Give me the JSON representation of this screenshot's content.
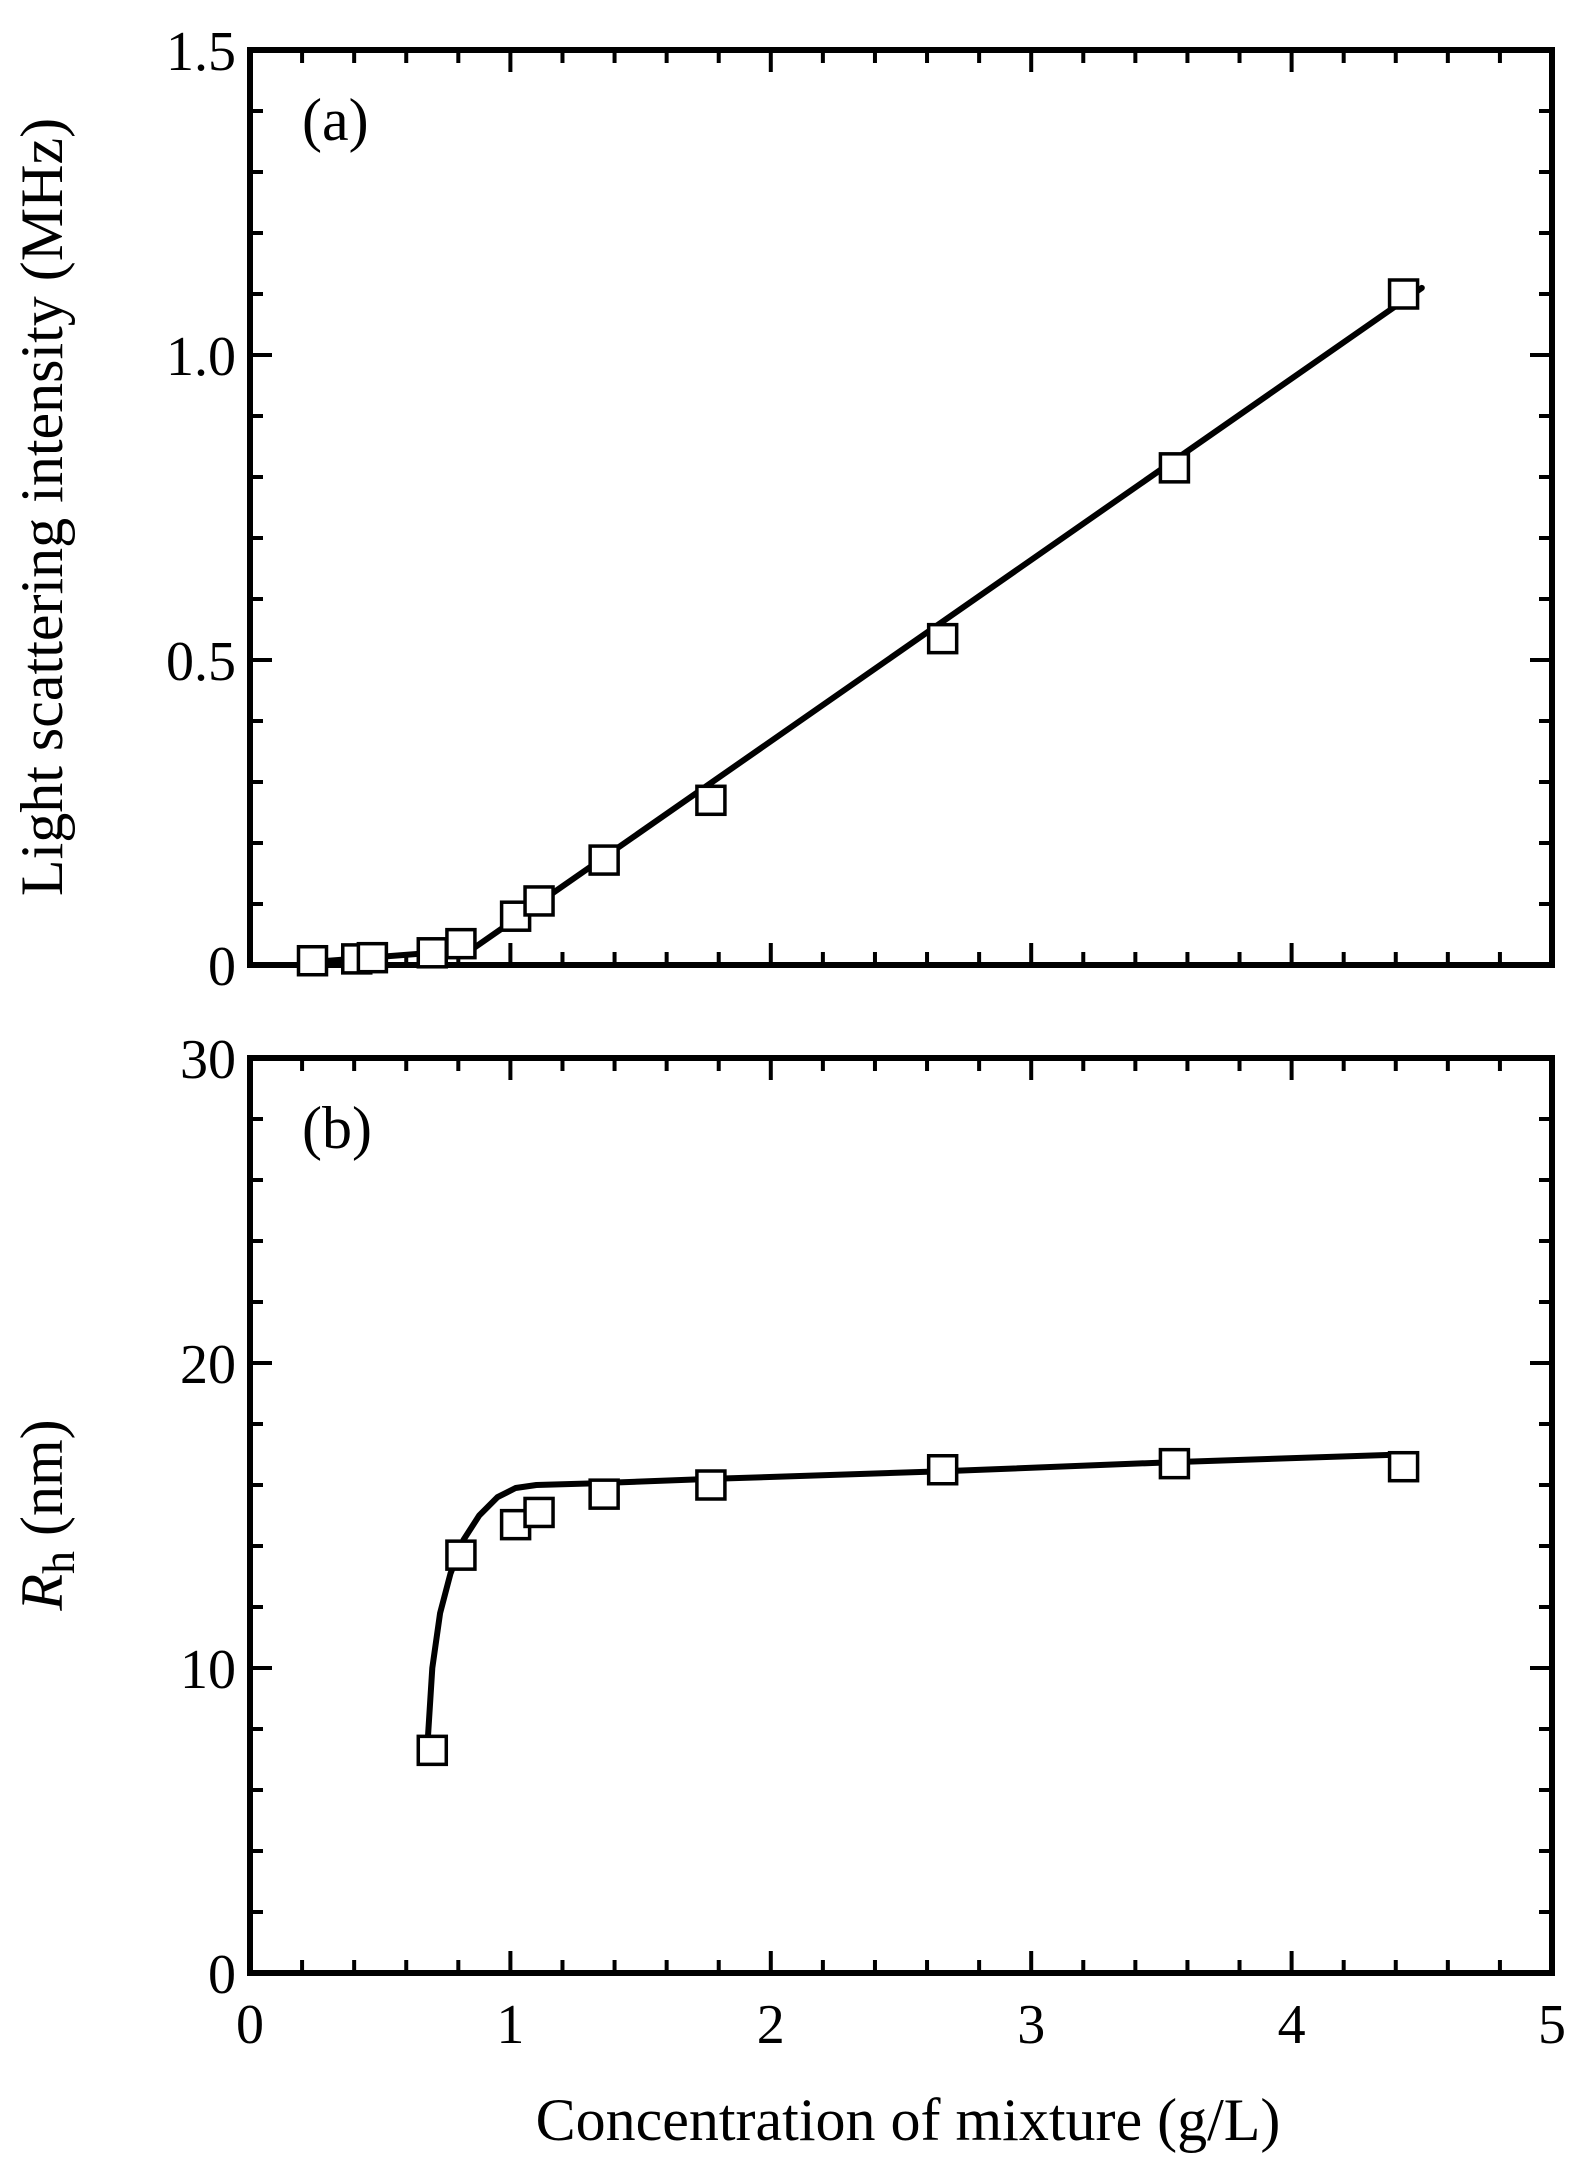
{
  "chart_data": [
    {
      "type": "scatter",
      "panel_label": "(a)",
      "xlabel": "Concentration of mixture (g/L)",
      "ylabel": "Light scattering intensity (MHz)",
      "xlim": [
        0,
        5
      ],
      "ylim": [
        0,
        1.5
      ],
      "x_ticks": [
        "0",
        "1",
        "2",
        "3",
        "4",
        "5"
      ],
      "y_ticks": [
        "0",
        "0.5",
        "1.0",
        "1.5"
      ],
      "y_tick_values": [
        0,
        0.5,
        1.0,
        1.5
      ],
      "grid": false,
      "series": [
        {
          "style": "open-square",
          "x": [
            0.24,
            0.41,
            0.47,
            0.7,
            0.81,
            1.02,
            1.11,
            1.36,
            1.77,
            2.66,
            3.55,
            4.43
          ],
          "y": [
            0.007,
            0.01,
            0.012,
            0.02,
            0.035,
            0.08,
            0.105,
            0.172,
            0.27,
            0.535,
            0.815,
            1.1
          ]
        },
        {
          "style": "fit-line",
          "x": [
            0.24,
            0.85,
            4.5
          ],
          "y": [
            0.005,
            0.025,
            1.11
          ]
        }
      ]
    },
    {
      "type": "scatter",
      "panel_label": "(b)",
      "xlabel": "Concentration of mixture (g/L)",
      "ylabel_main": "R",
      "ylabel_sub": "h",
      "ylabel_unit": "(nm)",
      "xlim": [
        0,
        5
      ],
      "ylim": [
        0,
        30
      ],
      "x_ticks": [
        "0",
        "1",
        "2",
        "3",
        "4",
        "5"
      ],
      "y_ticks": [
        "0",
        "10",
        "20",
        "30"
      ],
      "y_tick_values": [
        0,
        10,
        20,
        30
      ],
      "grid": false,
      "series": [
        {
          "style": "open-square",
          "x": [
            0.7,
            0.81,
            1.02,
            1.11,
            1.36,
            1.77,
            2.66,
            3.55,
            4.43
          ],
          "y": [
            7.3,
            13.7,
            14.7,
            15.1,
            15.7,
            16.0,
            16.5,
            16.7,
            16.6
          ]
        },
        {
          "style": "fit-line",
          "x": [
            0.68,
            0.7,
            0.73,
            0.77,
            0.82,
            0.88,
            0.95,
            1.02,
            1.1,
            1.3,
            1.77,
            2.66,
            3.55,
            4.43
          ],
          "y": [
            7.3,
            10.0,
            11.8,
            13.1,
            14.2,
            15.0,
            15.6,
            15.9,
            16.0,
            16.05,
            16.2,
            16.45,
            16.75,
            17.0
          ]
        }
      ]
    }
  ]
}
